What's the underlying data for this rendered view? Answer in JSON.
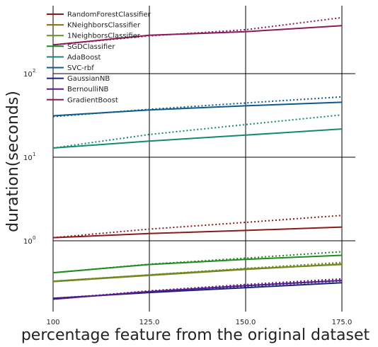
{
  "chart_data": {
    "type": "line",
    "title": "",
    "xlabel": "percentage feature from the original dataset",
    "ylabel": "duration(seconds)",
    "x": [
      100,
      125,
      150,
      175
    ],
    "x_tick_labels": [
      "100",
      "125.0",
      "150.0",
      "175.0"
    ],
    "xlim": [
      100,
      175
    ],
    "yscale": "log",
    "ylim": [
      0.13,
      8
    ],
    "y_tick_labels": [
      {
        "value": 100,
        "base": "10",
        "exp": "2"
      },
      {
        "value": 10,
        "base": "10",
        "exp": "1"
      },
      {
        "value": 1,
        "base": "10",
        "exp": "0"
      }
    ],
    "grid": true,
    "legend": "top-left",
    "series": [
      {
        "name": "RandomForestClassifier",
        "color": "#8b1a1a",
        "solid": [
          1.09,
          1.22,
          1.33,
          1.46
        ],
        "dotted": [
          1.09,
          1.38,
          1.66,
          2.01
        ]
      },
      {
        "name": "KNeighborsClassifier",
        "color": "#8b6914",
        "solid": [
          0.325,
          0.385,
          0.455,
          0.525
        ],
        "dotted": [
          0.325,
          0.39,
          0.465,
          0.55
        ]
      },
      {
        "name": "1NeighborsClassifier",
        "color": "#6b8e23",
        "solid": [
          0.328,
          0.39,
          0.46,
          0.52
        ],
        "dotted": [
          0.328,
          0.392,
          0.468,
          0.545
        ]
      },
      {
        "name": "SGDClassifier",
        "color": "#1e8b1e",
        "solid": [
          0.415,
          0.52,
          0.6,
          0.67
        ],
        "dotted": [
          0.415,
          0.525,
          0.62,
          0.74
        ]
      },
      {
        "name": "AdaBoost",
        "color": "#138a6e",
        "solid": [
          12.9,
          15.6,
          18.4,
          21.8
        ],
        "dotted": [
          12.9,
          18.7,
          24.6,
          32.1
        ]
      },
      {
        "name": "SVC-rbf",
        "color": "#0f5a8c",
        "solid": [
          31.3,
          36.8,
          41.2,
          45.5
        ],
        "dotted": [
          30.6,
          37.5,
          44.6,
          52.7
        ]
      },
      {
        "name": "GaussianNB",
        "color": "#1a237e",
        "solid": [
          0.205,
          0.24,
          0.275,
          0.315
        ],
        "dotted": [
          0.205,
          0.245,
          0.285,
          0.33
        ]
      },
      {
        "name": "BernoulliNB",
        "color": "#5b1a8c",
        "solid": [
          0.2,
          0.247,
          0.29,
          0.335
        ],
        "dotted": [
          0.2,
          0.252,
          0.3,
          0.35
        ]
      },
      {
        "name": "GradientBoost",
        "color": "#8b1a5e",
        "solid": [
          221,
          288,
          318,
          375
        ],
        "dotted": [
          221,
          283,
          335,
          468
        ]
      }
    ]
  }
}
